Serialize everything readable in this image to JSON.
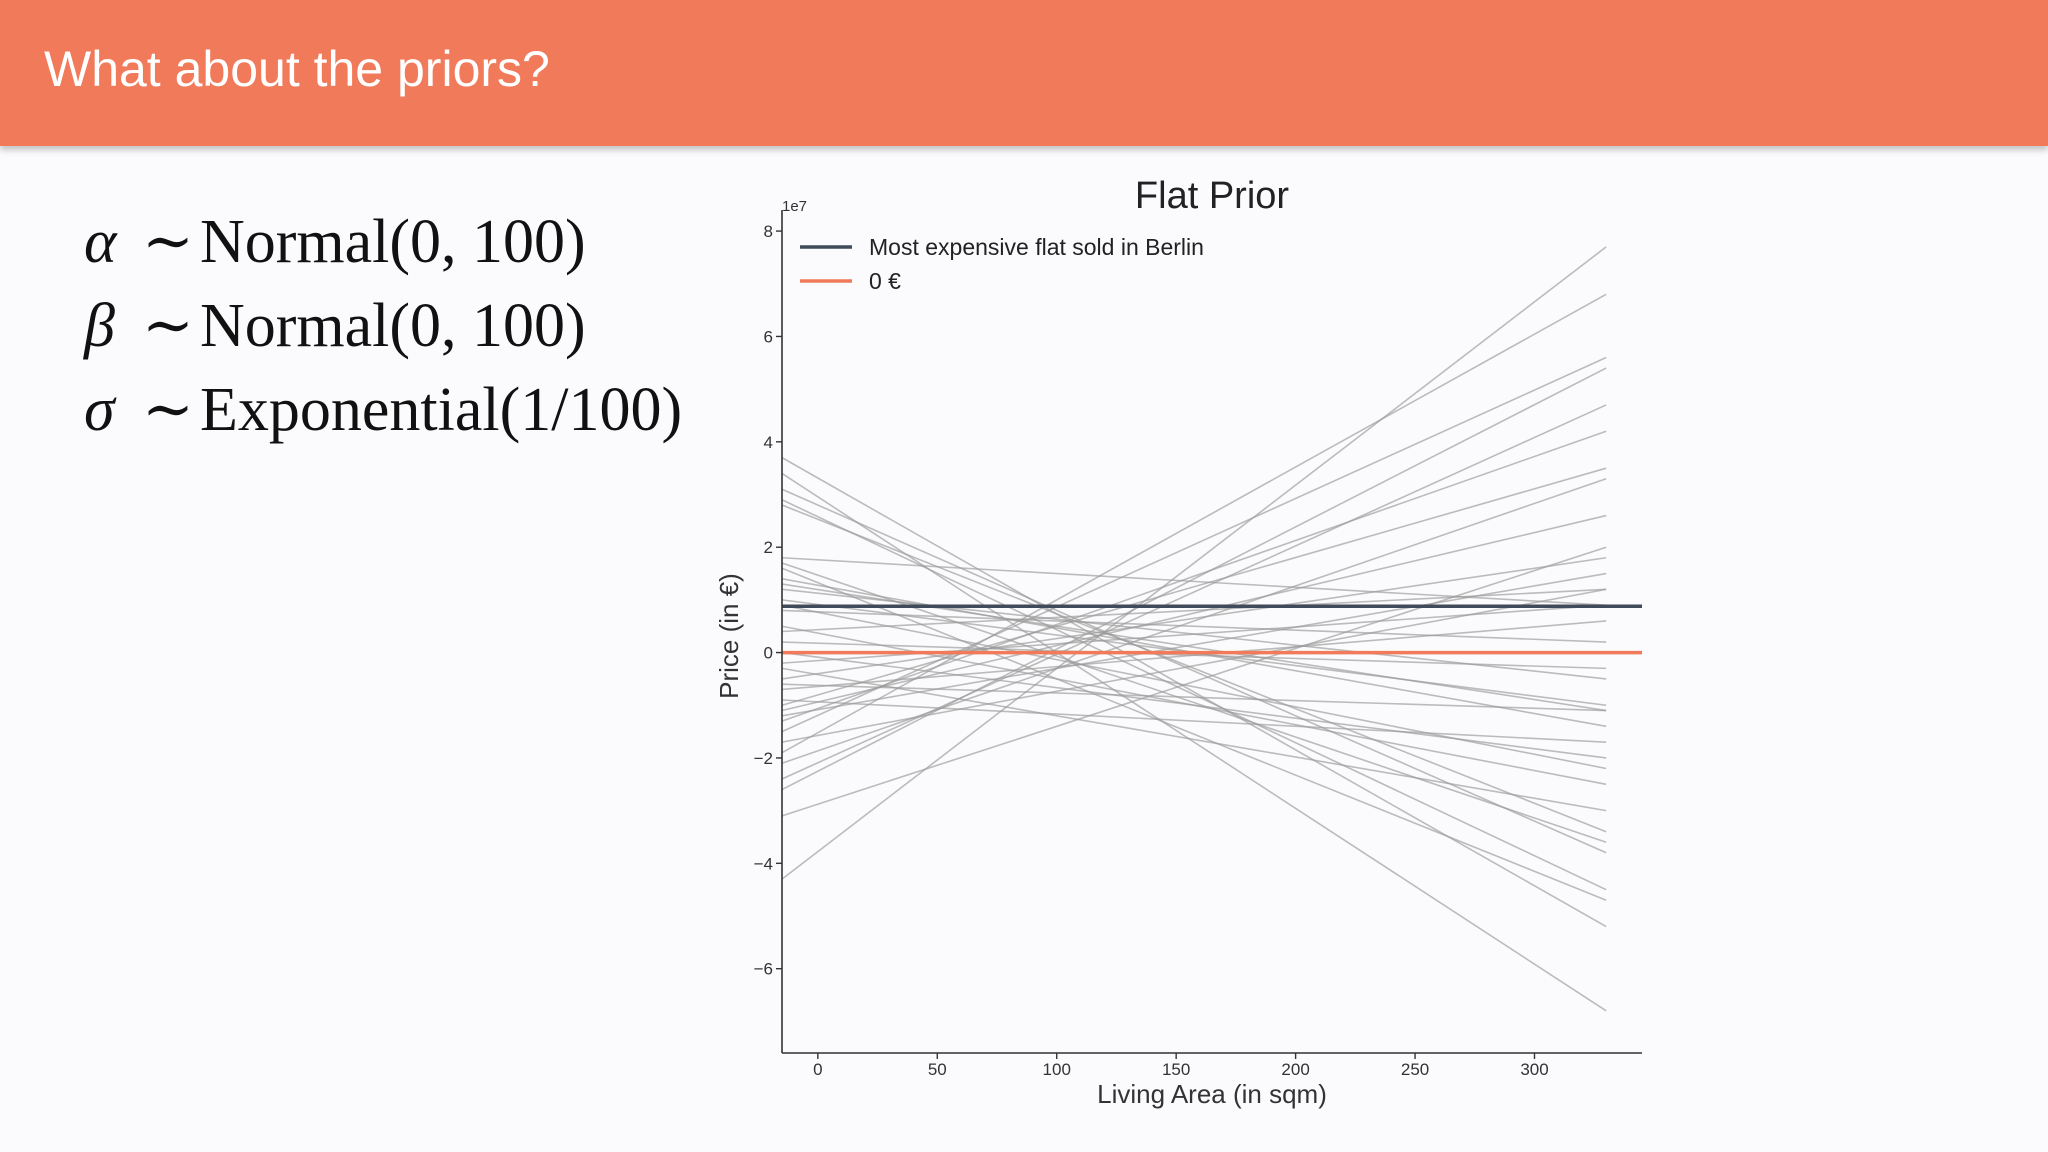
{
  "header": {
    "title": "What about the priors?"
  },
  "formulas": [
    {
      "symbol": "α",
      "relation": "∼",
      "expr": "Normal(0, 100)"
    },
    {
      "symbol": "β",
      "relation": "∼",
      "expr": "Normal(0, 100)"
    },
    {
      "symbol": "σ",
      "relation": "∼",
      "expr": "Exponential(1/100)"
    }
  ],
  "chart_data": {
    "type": "line",
    "title": "Flat Prior",
    "xlabel": "Living Area (in sqm)",
    "ylabel": "Price (in €)",
    "y_scale_label": "1e7",
    "xlim": [
      -15,
      345
    ],
    "ylim": [
      -7.6,
      8.4
    ],
    "xticks": [
      0,
      50,
      100,
      150,
      200,
      250,
      300
    ],
    "yticks": [
      -6,
      -4,
      -2,
      0,
      2,
      4,
      6,
      8
    ],
    "x_range": [
      -15,
      330
    ],
    "legend_position": "top-left",
    "colors": {
      "prior": "#9a9a9a",
      "max_flat": "#3f4a5a",
      "zero": "#f07a5a"
    },
    "reference_lines": [
      {
        "name": "Most expensive flat sold in Berlin",
        "y": 0.88
      },
      {
        "name": "0 €",
        "y": 0.0
      }
    ],
    "series": [
      {
        "y0": 3.7,
        "y1": -5.2
      },
      {
        "y0": 3.4,
        "y1": -6.8
      },
      {
        "y0": 2.9,
        "y1": -4.5
      },
      {
        "y0": 2.8,
        "y1": -3.4
      },
      {
        "y0": 1.7,
        "y1": -3.6
      },
      {
        "y0": 1.6,
        "y1": -4.7
      },
      {
        "y0": 1.4,
        "y1": -1.4
      },
      {
        "y0": 1.3,
        "y1": -1.1
      },
      {
        "y0": 1.2,
        "y1": -0.5
      },
      {
        "y0": 1.0,
        "y1": -1.0
      },
      {
        "y0": 0.8,
        "y1": 0.2
      },
      {
        "y0": 0.5,
        "y1": -2.5
      },
      {
        "y0": 0.4,
        "y1": 1.2
      },
      {
        "y0": 0.2,
        "y1": -0.3
      },
      {
        "y0": 0.0,
        "y1": -2.0
      },
      {
        "y0": -0.2,
        "y1": 0.9
      },
      {
        "y0": -0.3,
        "y1": -3.0
      },
      {
        "y0": -0.5,
        "y1": 1.8
      },
      {
        "y0": -0.7,
        "y1": 0.6
      },
      {
        "y0": -0.9,
        "y1": -1.7
      },
      {
        "y0": -1.0,
        "y1": 3.5
      },
      {
        "y0": -1.1,
        "y1": 2.6
      },
      {
        "y0": -1.3,
        "y1": 4.2
      },
      {
        "y0": -1.5,
        "y1": 5.6
      },
      {
        "y0": -1.7,
        "y1": 1.2
      },
      {
        "y0": -1.9,
        "y1": 6.8
      },
      {
        "y0": -2.1,
        "y1": 3.3
      },
      {
        "y0": -2.4,
        "y1": 4.7
      },
      {
        "y0": -2.6,
        "y1": 5.4
      },
      {
        "y0": -3.1,
        "y1": 2.0
      },
      {
        "y0": -4.3,
        "y1": 7.7
      },
      {
        "y0": 1.8,
        "y1": 0.9
      },
      {
        "y0": -0.6,
        "y1": -1.1
      },
      {
        "y0": 0.9,
        "y1": -2.2
      },
      {
        "y0": -1.2,
        "y1": 1.5
      },
      {
        "y0": 3.1,
        "y1": -3.8
      }
    ]
  }
}
